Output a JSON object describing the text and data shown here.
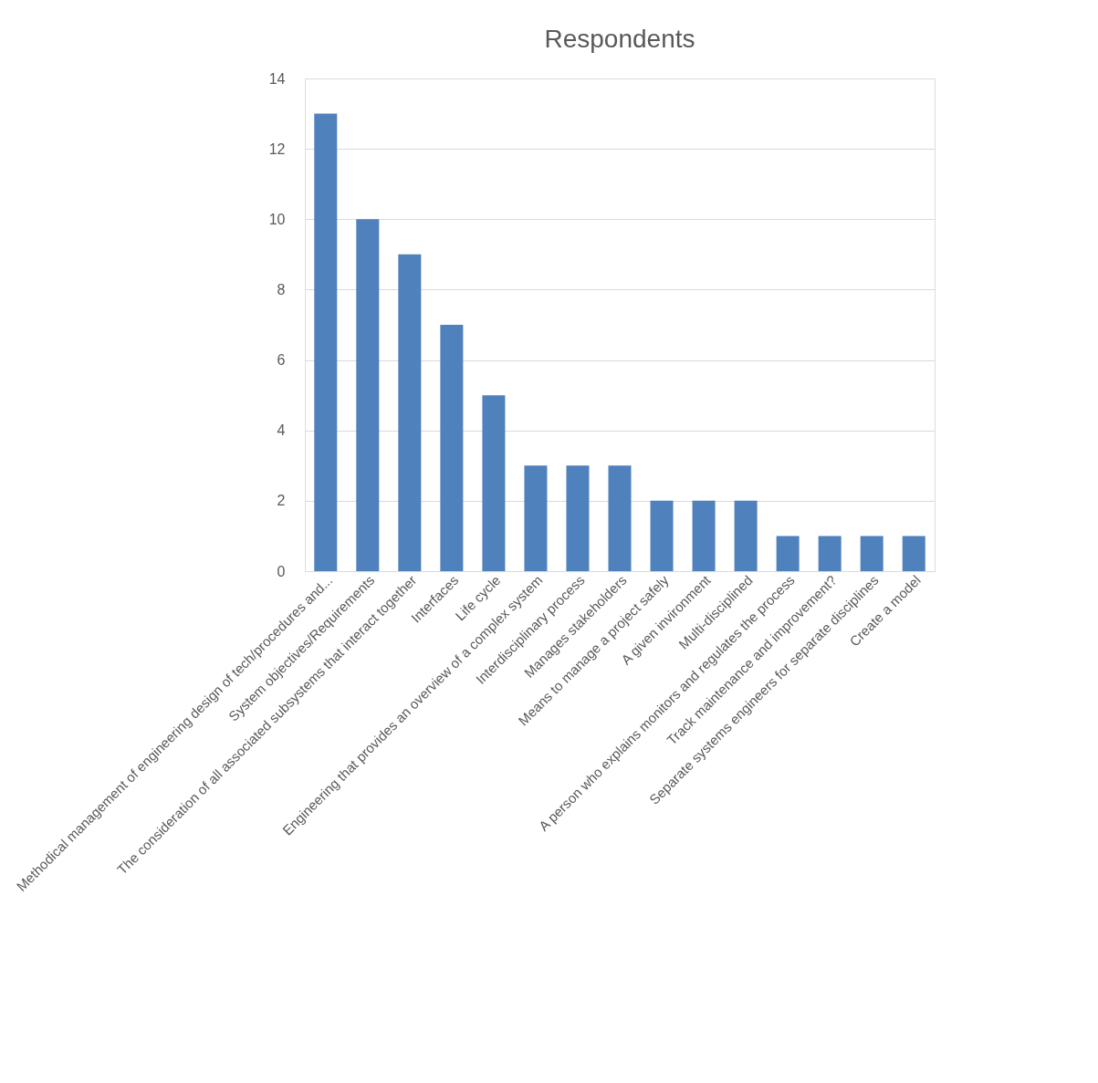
{
  "chart_data": {
    "type": "bar",
    "title": "Respondents",
    "categories": [
      "Methodical management of engineering design of tech/procedures and...",
      "System objectives/Requirements",
      "The consideration of all associated subsystems that interact together",
      "Interfaces",
      "Life cycle",
      "Engineering that provides an overview of a complex system",
      "Interdisciplinary process",
      "Manages stakeholders",
      "Means to manage a project safely",
      "A given invironment",
      "Multi-disciplined",
      "A person who explains monitors and regulates the process",
      "Track maintenance and improvement?",
      "Separate systems engineers for separate disciplines",
      "Create a model"
    ],
    "values": [
      13,
      10,
      9,
      7,
      5,
      3,
      3,
      3,
      2,
      2,
      2,
      1,
      1,
      1,
      1
    ],
    "color": "#4f81bd",
    "ylim": [
      0,
      14
    ],
    "yticks": [
      0,
      2,
      4,
      6,
      8,
      10,
      12,
      14
    ],
    "grid": "y"
  }
}
